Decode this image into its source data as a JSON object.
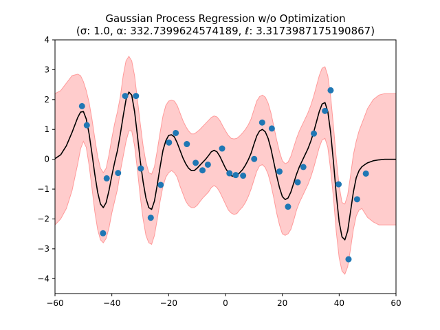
{
  "chart_data": {
    "type": "line",
    "title": "Gaussian Process Regression w/o Optimization",
    "subtitle": "(σ: 1.0, α: 332.7399624574189, ℓ: 3.3173987175190867)",
    "xlabel": "",
    "ylabel": "",
    "xlim": [
      -60,
      60
    ],
    "ylim": [
      -4.5,
      4
    ],
    "x_ticks": [
      -60,
      -40,
      -20,
      0,
      20,
      40,
      60
    ],
    "y_ticks": [
      -4,
      -3,
      -2,
      -1,
      0,
      1,
      2,
      3,
      4
    ],
    "grid": false,
    "legend": "none",
    "colors": {
      "observations": "#1f77b4",
      "mean": "#000000",
      "band_fill": "#ffcccc",
      "band_edge": "#ff9a9a"
    },
    "series": [
      {
        "kind": "mean",
        "x": [
          -60,
          -58,
          -56,
          -54,
          -52,
          -51,
          -50,
          -49,
          -48,
          -47,
          -46,
          -45,
          -44,
          -43,
          -42,
          -41,
          -40,
          -39,
          -38,
          -37,
          -36,
          -35,
          -34,
          -33,
          -32,
          -31,
          -30,
          -29,
          -28,
          -27,
          -26,
          -25,
          -24,
          -23,
          -22,
          -21,
          -20,
          -19,
          -18,
          -17,
          -16,
          -15,
          -14,
          -13,
          -12,
          -11,
          -10,
          -9,
          -8,
          -7,
          -6,
          -5,
          -4,
          -3,
          -2,
          -1,
          0,
          1,
          2,
          3,
          4,
          5,
          6,
          7,
          8,
          9,
          10,
          11,
          12,
          13,
          14,
          15,
          16,
          17,
          18,
          19,
          20,
          21,
          22,
          23,
          24,
          25,
          26,
          27,
          28,
          29,
          30,
          31,
          32,
          33,
          34,
          35,
          36,
          37,
          38,
          39,
          40,
          41,
          42,
          43,
          44,
          45,
          46,
          47,
          48,
          49,
          50,
          52,
          54,
          56,
          58,
          60
        ],
        "y": [
          0.02,
          0.15,
          0.45,
          0.9,
          1.4,
          1.58,
          1.6,
          1.35,
          0.85,
          0.2,
          -0.5,
          -1.1,
          -1.5,
          -1.62,
          -1.45,
          -1.05,
          -0.55,
          -0.1,
          0.3,
          0.85,
          1.45,
          2.0,
          2.25,
          2.15,
          1.6,
          0.8,
          -0.05,
          -0.75,
          -1.3,
          -1.62,
          -1.68,
          -1.4,
          -0.85,
          -0.25,
          0.3,
          0.62,
          0.8,
          0.82,
          0.75,
          0.55,
          0.3,
          0.05,
          -0.15,
          -0.3,
          -0.38,
          -0.38,
          -0.3,
          -0.2,
          -0.1,
          0.0,
          0.12,
          0.25,
          0.3,
          0.25,
          0.1,
          -0.1,
          -0.3,
          -0.45,
          -0.55,
          -0.58,
          -0.55,
          -0.45,
          -0.35,
          -0.2,
          -0.02,
          0.2,
          0.5,
          0.78,
          0.95,
          1.0,
          0.92,
          0.7,
          0.35,
          -0.1,
          -0.55,
          -0.95,
          -1.25,
          -1.35,
          -1.3,
          -1.1,
          -0.8,
          -0.5,
          -0.25,
          -0.05,
          0.15,
          0.35,
          0.6,
          0.9,
          1.25,
          1.6,
          1.85,
          1.9,
          1.6,
          0.9,
          -0.1,
          -1.2,
          -2.1,
          -2.6,
          -2.7,
          -2.4,
          -1.75,
          -1.1,
          -0.62,
          -0.38,
          -0.25,
          -0.18,
          -0.12,
          -0.05,
          -0.02,
          0.0,
          0.0,
          0.0
        ]
      },
      {
        "kind": "band_upper",
        "x": [
          -60,
          -58,
          -56,
          -54,
          -52,
          -51,
          -50,
          -49,
          -48,
          -47,
          -46,
          -45,
          -44,
          -43,
          -42,
          -41,
          -40,
          -39,
          -38,
          -37,
          -36,
          -35,
          -34,
          -33,
          -32,
          -31,
          -30,
          -29,
          -28,
          -27,
          -26,
          -25,
          -24,
          -23,
          -22,
          -21,
          -20,
          -19,
          -18,
          -17,
          -16,
          -15,
          -14,
          -13,
          -12,
          -11,
          -10,
          -9,
          -8,
          -7,
          -6,
          -5,
          -4,
          -3,
          -2,
          -1,
          0,
          1,
          2,
          3,
          4,
          5,
          6,
          7,
          8,
          9,
          10,
          11,
          12,
          13,
          14,
          15,
          16,
          17,
          18,
          19,
          20,
          21,
          22,
          23,
          24,
          25,
          26,
          27,
          28,
          29,
          30,
          31,
          32,
          33,
          34,
          35,
          36,
          37,
          38,
          39,
          40,
          41,
          42,
          43,
          44,
          45,
          46,
          47,
          48,
          49,
          50,
          52,
          54,
          56,
          58,
          60
        ],
        "y": [
          2.2,
          2.3,
          2.55,
          2.8,
          2.85,
          2.8,
          2.6,
          2.3,
          1.9,
          1.35,
          0.7,
          0.1,
          -0.3,
          -0.45,
          -0.3,
          0.15,
          0.7,
          1.2,
          1.6,
          2.1,
          2.8,
          3.3,
          3.45,
          3.3,
          2.8,
          2.0,
          1.2,
          0.45,
          -0.1,
          -0.45,
          -0.5,
          -0.25,
          0.3,
          0.9,
          1.45,
          1.8,
          1.95,
          1.98,
          1.95,
          1.8,
          1.55,
          1.3,
          1.1,
          0.95,
          0.85,
          0.85,
          0.92,
          1.0,
          1.1,
          1.2,
          1.3,
          1.4,
          1.45,
          1.42,
          1.3,
          1.12,
          0.95,
          0.8,
          0.7,
          0.68,
          0.7,
          0.78,
          0.88,
          1.0,
          1.15,
          1.35,
          1.65,
          1.95,
          2.1,
          2.15,
          2.08,
          1.88,
          1.55,
          1.1,
          0.65,
          0.25,
          -0.05,
          -0.15,
          -0.1,
          0.1,
          0.4,
          0.7,
          0.95,
          1.15,
          1.35,
          1.55,
          1.8,
          2.1,
          2.45,
          2.8,
          3.05,
          3.1,
          2.8,
          2.1,
          1.1,
          0.0,
          -0.9,
          -1.45,
          -1.5,
          -1.2,
          -0.55,
          0.15,
          0.6,
          0.95,
          1.2,
          1.45,
          1.7,
          2.0,
          2.15,
          2.2,
          2.2,
          2.2
        ]
      },
      {
        "kind": "band_lower",
        "x": [
          -60,
          -58,
          -56,
          -54,
          -52,
          -51,
          -50,
          -49,
          -48,
          -47,
          -46,
          -45,
          -44,
          -43,
          -42,
          -41,
          -40,
          -39,
          -38,
          -37,
          -36,
          -35,
          -34,
          -33,
          -32,
          -31,
          -30,
          -29,
          -28,
          -27,
          -26,
          -25,
          -24,
          -23,
          -22,
          -21,
          -20,
          -19,
          -18,
          -17,
          -16,
          -15,
          -14,
          -13,
          -12,
          -11,
          -10,
          -9,
          -8,
          -7,
          -6,
          -5,
          -4,
          -3,
          -2,
          -1,
          0,
          1,
          2,
          3,
          4,
          5,
          6,
          7,
          8,
          9,
          10,
          11,
          12,
          13,
          14,
          15,
          16,
          17,
          18,
          19,
          20,
          21,
          22,
          23,
          24,
          25,
          26,
          27,
          28,
          29,
          30,
          31,
          32,
          33,
          34,
          35,
          36,
          37,
          38,
          39,
          40,
          41,
          42,
          43,
          44,
          45,
          46,
          47,
          48,
          49,
          50,
          52,
          54,
          56,
          58,
          60
        ],
        "y": [
          -2.2,
          -2.0,
          -1.65,
          -1.05,
          -0.15,
          0.35,
          0.6,
          0.4,
          -0.2,
          -0.95,
          -1.75,
          -2.35,
          -2.7,
          -2.8,
          -2.65,
          -2.3,
          -1.8,
          -1.4,
          -1.0,
          -0.4,
          0.1,
          0.6,
          0.95,
          0.95,
          0.45,
          -0.35,
          -1.25,
          -2.0,
          -2.55,
          -2.8,
          -2.85,
          -2.55,
          -2.0,
          -1.4,
          -0.9,
          -0.6,
          -0.45,
          -0.38,
          -0.45,
          -0.6,
          -0.9,
          -1.15,
          -1.4,
          -1.55,
          -1.62,
          -1.62,
          -1.55,
          -1.42,
          -1.3,
          -1.2,
          -1.1,
          -0.95,
          -0.88,
          -0.95,
          -1.1,
          -1.3,
          -1.5,
          -1.7,
          -1.8,
          -1.85,
          -1.82,
          -1.7,
          -1.6,
          -1.45,
          -1.25,
          -1.0,
          -0.7,
          -0.4,
          -0.22,
          -0.18,
          -0.28,
          -0.5,
          -0.85,
          -1.3,
          -1.8,
          -2.2,
          -2.5,
          -2.55,
          -2.5,
          -2.35,
          -2.05,
          -1.7,
          -1.45,
          -1.25,
          -1.05,
          -0.85,
          -0.6,
          -0.3,
          0.05,
          0.4,
          0.65,
          0.7,
          0.4,
          -0.35,
          -1.3,
          -2.45,
          -3.3,
          -3.75,
          -3.85,
          -3.6,
          -3.0,
          -2.35,
          -1.9,
          -1.7,
          -1.65,
          -1.8,
          -1.95,
          -2.1,
          -2.2,
          -2.2,
          -2.2,
          -2.2
        ]
      },
      {
        "kind": "observations",
        "x": [
          -50.5,
          -48.8,
          -43.1,
          -41.8,
          -37.8,
          -35.3,
          -31.5,
          -29.8,
          -26.3,
          -22.8,
          -19.9,
          -17.5,
          -13.6,
          -10.5,
          -8.1,
          -6.2,
          -1.2,
          1.4,
          3.6,
          6.2,
          10.1,
          12.9,
          16.3,
          19.0,
          22.0,
          25.4,
          27.4,
          31.1,
          35.0,
          37.0,
          39.8,
          43.3,
          46.3,
          49.4
        ],
        "y": [
          1.78,
          1.14,
          -2.48,
          -0.64,
          -0.46,
          2.12,
          2.12,
          -0.31,
          -1.96,
          -0.86,
          0.56,
          0.88,
          0.51,
          -0.12,
          -0.37,
          -0.18,
          0.36,
          -0.47,
          -0.53,
          -0.55,
          0.01,
          1.23,
          1.03,
          -0.41,
          -1.59,
          -0.77,
          -0.26,
          0.86,
          1.62,
          2.31,
          -0.84,
          -3.35,
          -1.34,
          -0.48
        ]
      }
    ]
  }
}
